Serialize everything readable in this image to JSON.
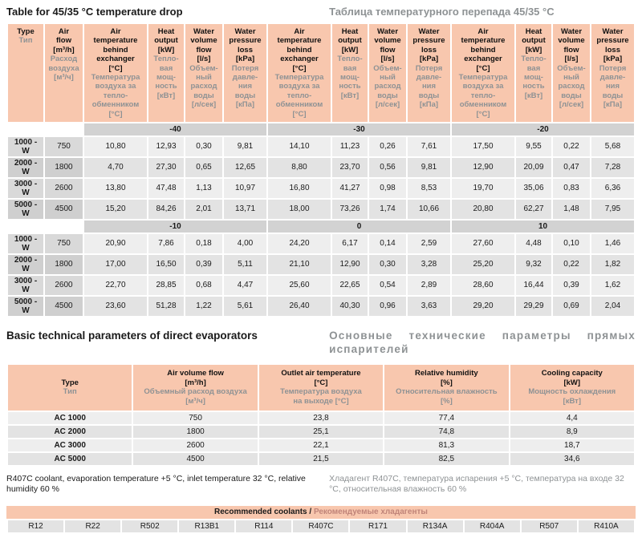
{
  "colors": {
    "header_bg": "#f8c7ae",
    "band_bg": "#d2d2d2",
    "row_type_bg": "#d9d9d9",
    "cell_bg": "#eeeeee",
    "russian_text": "#8e9294",
    "coolant_russian_text": "#c08479"
  },
  "table1": {
    "title_en": "Table for 45/35 °C temperature drop",
    "title_ru": "Таблица температурного перепада 45/35 °C",
    "col_type": {
      "en": "Type",
      "ru": "Тип"
    },
    "col_airflow": {
      "en": "Air\nflow\n[m³/h]",
      "ru": "Расход\nвоздуха\n[м³/ч]"
    },
    "group_cols": [
      {
        "en": "Air\ntemperature\nbehind\nexchanger\n[°C]",
        "ru": "Температура\nвоздуха за\nтепло-\nобменником\n[°C]"
      },
      {
        "en": "Heat\noutput\n[kW]",
        "ru": "Тепло-\nвая\nмощ-\nность\n[кВт]"
      },
      {
        "en": "Water\nvolume\nflow\n[l/s]",
        "ru": "Объем-\nный\nрасход\nводы\n[л/сек]"
      },
      {
        "en": "Water\npressure\nloss\n[kPa]",
        "ru": "Потеря\nдавле-\nния\nводы\n[кПа]"
      }
    ],
    "blocks": [
      {
        "band_labels": [
          "-40",
          "-30",
          "-20"
        ],
        "rows": [
          {
            "type": "1000 - W",
            "airflow": "750",
            "values": [
              "10,80",
              "12,93",
              "0,30",
              "9,81",
              "14,10",
              "11,23",
              "0,26",
              "7,61",
              "17,50",
              "9,55",
              "0,22",
              "5,68"
            ]
          },
          {
            "type": "2000 - W",
            "airflow": "1800",
            "values": [
              "4,70",
              "27,30",
              "0,65",
              "12,65",
              "8,80",
              "23,70",
              "0,56",
              "9,81",
              "12,90",
              "20,09",
              "0,47",
              "7,28"
            ]
          },
          {
            "type": "3000 - W",
            "airflow": "2600",
            "values": [
              "13,80",
              "47,48",
              "1,13",
              "10,97",
              "16,80",
              "41,27",
              "0,98",
              "8,53",
              "19,70",
              "35,06",
              "0,83",
              "6,36"
            ]
          },
          {
            "type": "5000 - W",
            "airflow": "4500",
            "values": [
              "15,20",
              "84,26",
              "2,01",
              "13,71",
              "18,00",
              "73,26",
              "1,74",
              "10,66",
              "20,80",
              "62,27",
              "1,48",
              "7,95"
            ]
          }
        ]
      },
      {
        "band_labels": [
          "-10",
          "0",
          "10"
        ],
        "rows": [
          {
            "type": "1000 - W",
            "airflow": "750",
            "values": [
              "20,90",
              "7,86",
              "0,18",
              "4,00",
              "24,20",
              "6,17",
              "0,14",
              "2,59",
              "27,60",
              "4,48",
              "0,10",
              "1,46"
            ]
          },
          {
            "type": "2000 - W",
            "airflow": "1800",
            "values": [
              "17,00",
              "16,50",
              "0,39",
              "5,11",
              "21,10",
              "12,90",
              "0,30",
              "3,28",
              "25,20",
              "9,32",
              "0,22",
              "1,82"
            ]
          },
          {
            "type": "3000 - W",
            "airflow": "2600",
            "values": [
              "22,70",
              "28,85",
              "0,68",
              "4,47",
              "25,60",
              "22,65",
              "0,54",
              "2,89",
              "28,60",
              "16,44",
              "0,39",
              "1,62"
            ]
          },
          {
            "type": "5000 - W",
            "airflow": "4500",
            "values": [
              "23,60",
              "51,28",
              "1,22",
              "5,61",
              "26,40",
              "40,30",
              "0,96",
              "3,63",
              "29,20",
              "29,29",
              "0,69",
              "2,04"
            ]
          }
        ]
      }
    ]
  },
  "table2": {
    "title_en": "Basic technical parameters of direct evaporators",
    "title_ru": "Основные технические параметры прямых испарителей",
    "columns": [
      {
        "en": "Type",
        "ru": "Тип"
      },
      {
        "en": "Air volume flow\n[m³/h]",
        "ru": "Объемный расход воздуха\n[м³/ч]"
      },
      {
        "en": "Outlet air temperature\n[°C]",
        "ru": "Температура воздуха\nна выходе  [°C]"
      },
      {
        "en": "Relative humidity\n[%]",
        "ru": "Относительная влажность\n[%]"
      },
      {
        "en": "Cooling capacity\n[kW]",
        "ru": "Мощность охлаждения\n[кВт]"
      }
    ],
    "rows": [
      {
        "type": "AC 1000",
        "values": [
          "750",
          "23,8",
          "77,4",
          "4,4"
        ]
      },
      {
        "type": "AC 2000",
        "values": [
          "1800",
          "25,1",
          "74,8",
          "8,9"
        ]
      },
      {
        "type": "AC 3000",
        "values": [
          "2600",
          "22,1",
          "81,3",
          "18,7"
        ]
      },
      {
        "type": "AC 5000",
        "values": [
          "4500",
          "21,5",
          "82,5",
          "34,6"
        ]
      }
    ]
  },
  "footer": {
    "en": "R407C coolant, evaporation temperature +5 °C, inlet temperature 32 °C, relative humidity 60 %",
    "ru": "Хладагент R407C, температура испарения +5 °C, температура на входе 32 °C, относительная влажность 60 %"
  },
  "coolants": {
    "header_en": "Recommended coolants / ",
    "header_ru": "Рекомендуемые хладагенты",
    "items": [
      "R12",
      "R22",
      "R502",
      "R13B1",
      "R114",
      "R407C",
      "R171",
      "R134A",
      "R404A",
      "R507",
      "R410A"
    ]
  }
}
